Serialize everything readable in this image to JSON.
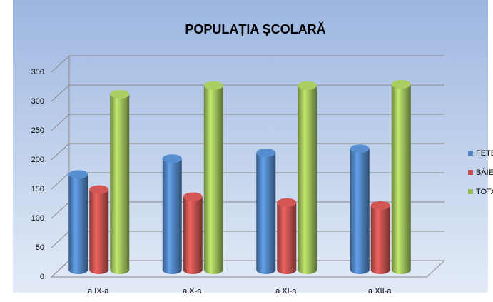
{
  "chart_data": {
    "type": "bar",
    "title": "POPULAȚIA ȘCOLARĂ",
    "categories": [
      "a IX-a",
      "a X-a",
      "a XI-a",
      "a XII-a"
    ],
    "series": [
      {
        "name": "FETE",
        "color": "#4f81bd",
        "values": [
          163,
          190,
          200,
          207
        ]
      },
      {
        "name": "BĂIEȚ",
        "color": "#c0504d",
        "values": [
          137,
          125,
          115,
          110
        ]
      },
      {
        "name": "TOTA",
        "color": "#9bbb59",
        "values": [
          300,
          315,
          315,
          317
        ]
      }
    ],
    "ylim": [
      0,
      350
    ],
    "yticks": [
      0,
      50,
      100,
      150,
      200,
      250,
      300,
      350
    ],
    "grid": true,
    "legend": "right"
  }
}
